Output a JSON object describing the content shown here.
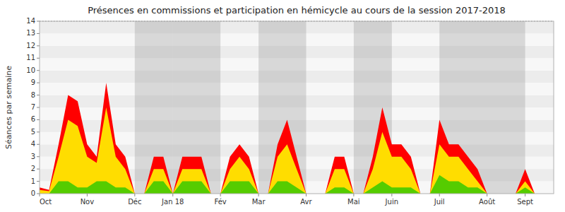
{
  "chart_data": {
    "type": "area",
    "title": "Présences en commissions et participation en hémicycle au cours de la session 2017-2018",
    "y_label": "Séances par semaine",
    "categories": [
      "Oct",
      null,
      null,
      null,
      null,
      "Nov",
      null,
      null,
      null,
      null,
      "Déc",
      null,
      null,
      null,
      "Jan 18",
      null,
      null,
      null,
      null,
      "Fév",
      null,
      null,
      null,
      "Mar",
      null,
      null,
      null,
      null,
      "Avr",
      null,
      null,
      null,
      null,
      "Mai",
      null,
      null,
      null,
      "Juin",
      null,
      null,
      null,
      null,
      "Juil",
      null,
      null,
      null,
      null,
      "Août",
      null,
      null,
      null,
      "Sept",
      null,
      null,
      null
    ],
    "series": [
      {
        "color": "#ff0000",
        "values": [
          0.5,
          0.3,
          4,
          8,
          7.5,
          4,
          3,
          9,
          4,
          3,
          0,
          0,
          3,
          3,
          0,
          3,
          3,
          3,
          0,
          0,
          3,
          4,
          3,
          0,
          0,
          4,
          6,
          3,
          0,
          0,
          0,
          3,
          3,
          0,
          0,
          3,
          7,
          4,
          4,
          3,
          0,
          0,
          6,
          4,
          4,
          3,
          2,
          0,
          0,
          0,
          0,
          2,
          0,
          0,
          0
        ]
      },
      {
        "color": "#ffdd00",
        "values": [
          0.3,
          0.2,
          3,
          6,
          5.5,
          3,
          2.5,
          7,
          3,
          2,
          0,
          0,
          2,
          2,
          0,
          2,
          2,
          2,
          0,
          0,
          2,
          3,
          2,
          0,
          0,
          3,
          4,
          2,
          0,
          0,
          0,
          2,
          2,
          0,
          0,
          2,
          5,
          3,
          3,
          2,
          0,
          0,
          4,
          3,
          3,
          2,
          1,
          0,
          0,
          0,
          0,
          1,
          0,
          0,
          0
        ]
      },
      {
        "color": "#55cc00",
        "values": [
          0,
          0,
          1,
          1,
          0.5,
          0.5,
          1,
          1,
          0.5,
          0.5,
          0,
          0,
          1,
          1,
          0,
          1,
          1,
          1,
          0,
          0,
          1,
          1,
          1,
          0,
          0,
          1,
          1,
          0.5,
          0,
          0,
          0,
          0.5,
          0.5,
          0,
          0,
          0.5,
          1,
          0.5,
          0.5,
          0.5,
          0,
          0,
          1.5,
          1,
          1,
          0.5,
          0.5,
          0,
          0,
          0,
          0,
          0.5,
          0,
          0,
          0
        ]
      }
    ],
    "shaded_months": [
      "Déc",
      "Jan 18",
      "Mar",
      "Mai",
      "Juil",
      "Août"
    ],
    "ylim": [
      0,
      14
    ],
    "yticks": [
      0,
      1,
      2,
      3,
      4,
      5,
      6,
      7,
      8,
      9,
      10,
      11,
      12,
      13,
      14
    ],
    "grid": false
  }
}
